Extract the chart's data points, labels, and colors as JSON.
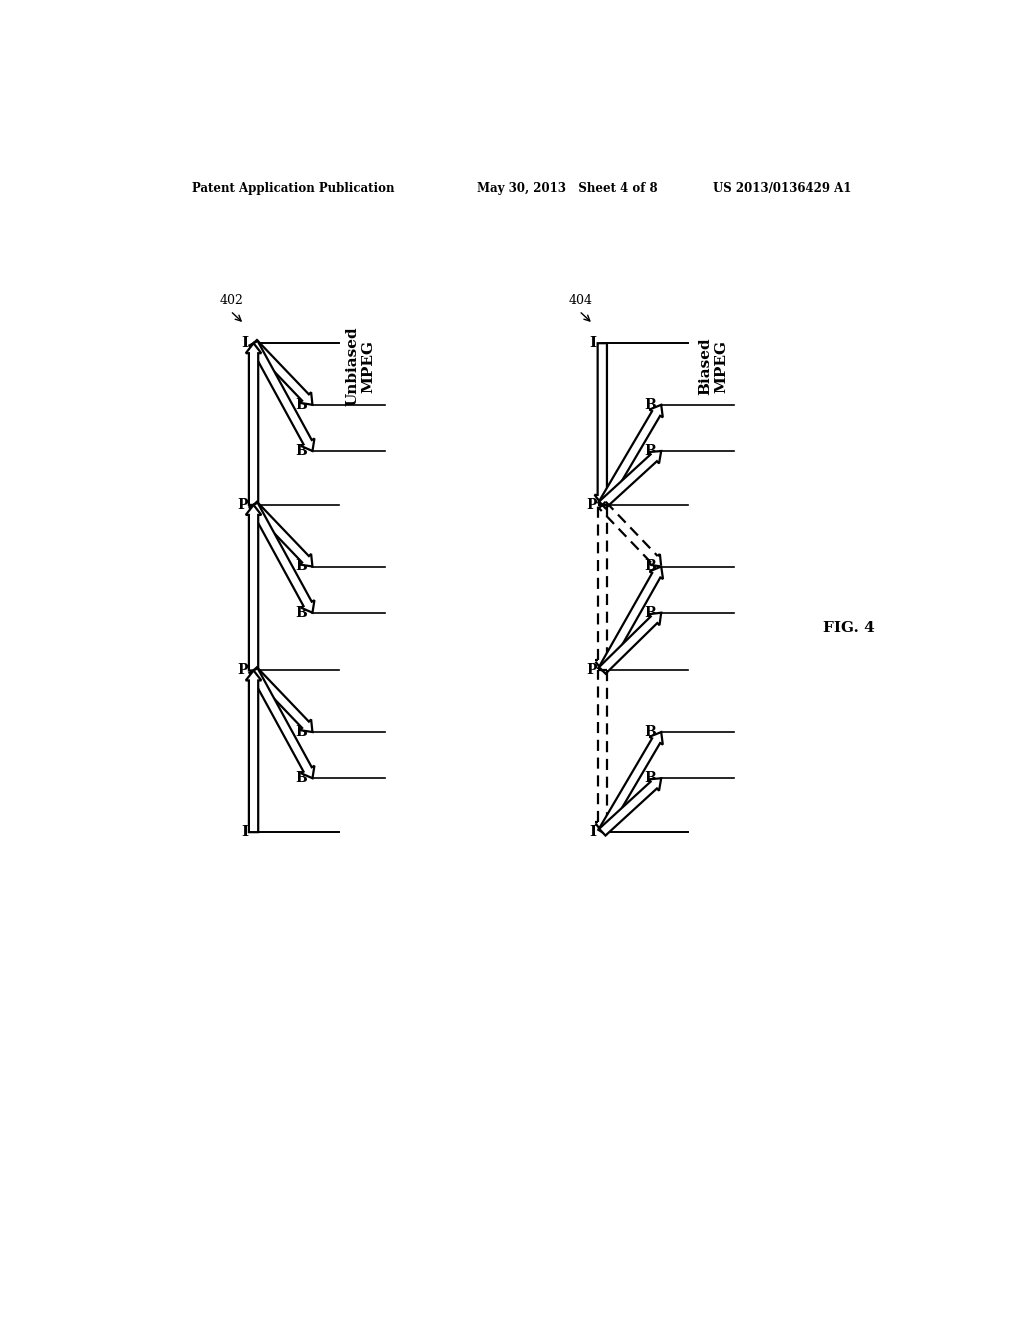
{
  "header_left": "Patent Application Publication",
  "header_mid": "May 30, 2013   Sheet 4 of 8",
  "header_right": "US 2013/0136429 A1",
  "fig_label": "FIG. 4",
  "left_title": "Unbiased\nMPEG",
  "right_title": "Biased\nMPEG",
  "left_ref": "402",
  "right_ref": "404",
  "bg_color": "#ffffff"
}
